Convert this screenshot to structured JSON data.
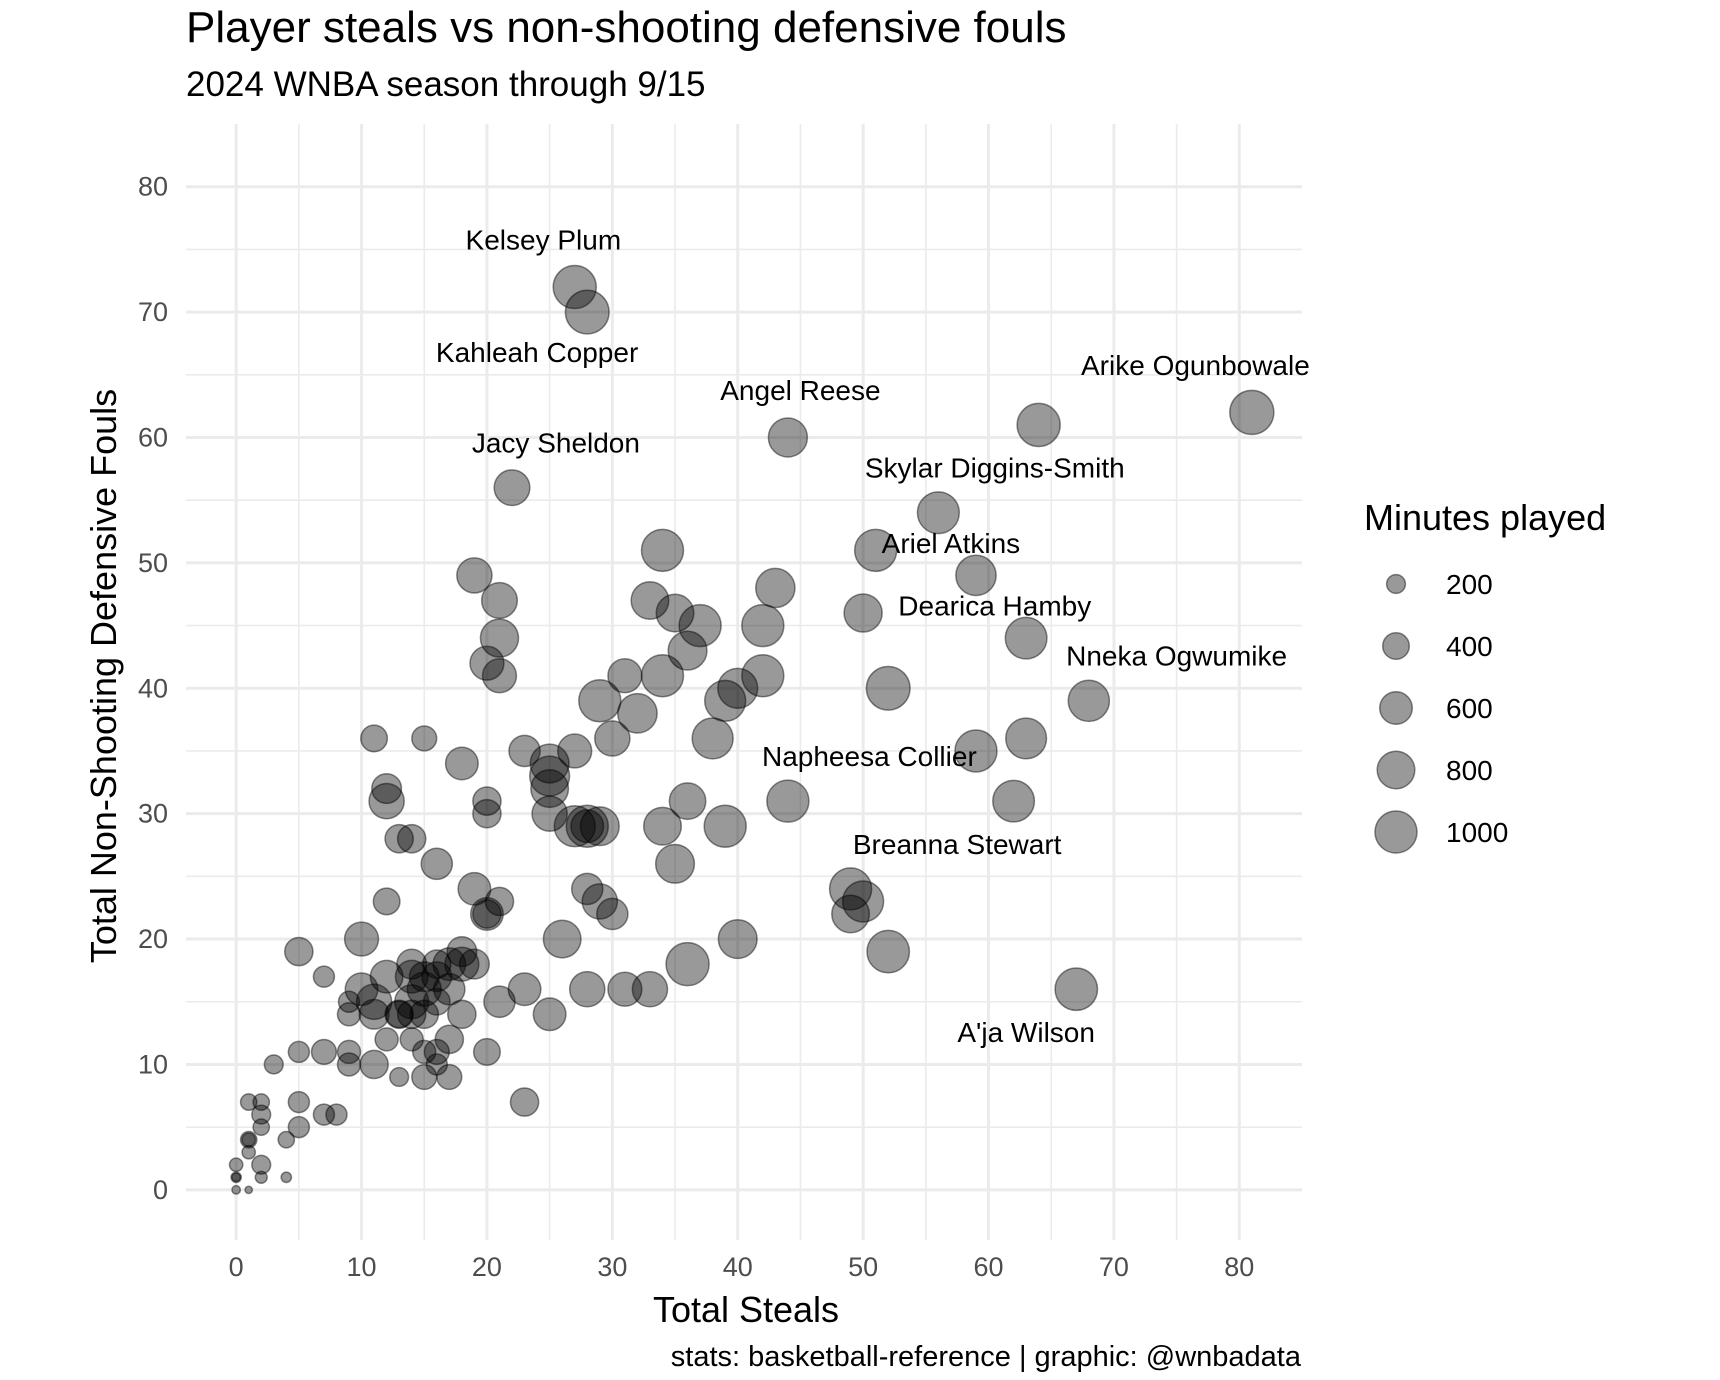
{
  "chart_data": {
    "type": "scatter",
    "title": "Player steals vs non-shooting defensive fouls",
    "subtitle": "2024 WNBA season through 9/15",
    "xlabel": "Total Steals",
    "ylabel": "Total Non-Shooting Defensive Fouls",
    "caption": "stats: basketball-reference | graphic: @wnbadata",
    "xlim": [
      -4,
      85
    ],
    "ylim": [
      -4,
      85
    ],
    "x_ticks": [
      0,
      10,
      20,
      30,
      40,
      50,
      60,
      70,
      80
    ],
    "y_ticks": [
      0,
      10,
      20,
      30,
      40,
      50,
      60,
      70,
      80
    ],
    "grid": true,
    "size_legend": {
      "title": "Minutes played",
      "position": "right",
      "entries": [
        {
          "label": "200",
          "value": 200
        },
        {
          "label": "400",
          "value": 400
        },
        {
          "label": "600",
          "value": 600
        },
        {
          "label": "800",
          "value": 800
        },
        {
          "label": "1000",
          "value": 1000
        }
      ]
    },
    "points": [
      {
        "x": 27,
        "y": 72,
        "minutes": 1050
      },
      {
        "x": 28,
        "y": 70,
        "minutes": 1080
      },
      {
        "x": 44,
        "y": 60,
        "minutes": 860
      },
      {
        "x": 22,
        "y": 56,
        "minutes": 720
      },
      {
        "x": 64,
        "y": 61,
        "minutes": 1050
      },
      {
        "x": 81,
        "y": 62,
        "minutes": 1100
      },
      {
        "x": 56,
        "y": 54,
        "minutes": 990
      },
      {
        "x": 51,
        "y": 51,
        "minutes": 1000
      },
      {
        "x": 59,
        "y": 49,
        "minutes": 920
      },
      {
        "x": 50,
        "y": 46,
        "minutes": 820
      },
      {
        "x": 63,
        "y": 44,
        "minutes": 980
      },
      {
        "x": 68,
        "y": 39,
        "minutes": 960
      },
      {
        "x": 52,
        "y": 40,
        "minutes": 1080
      },
      {
        "x": 44,
        "y": 31,
        "minutes": 1000
      },
      {
        "x": 59,
        "y": 35,
        "minutes": 1000
      },
      {
        "x": 63,
        "y": 36,
        "minutes": 940
      },
      {
        "x": 62,
        "y": 31,
        "minutes": 980
      },
      {
        "x": 49,
        "y": 24,
        "minutes": 1000
      },
      {
        "x": 50,
        "y": 23,
        "minutes": 950
      },
      {
        "x": 49,
        "y": 22,
        "minutes": 800
      },
      {
        "x": 52,
        "y": 19,
        "minutes": 1020
      },
      {
        "x": 67,
        "y": 16,
        "minutes": 1020
      },
      {
        "x": 34,
        "y": 51,
        "minutes": 1000
      },
      {
        "x": 43,
        "y": 48,
        "minutes": 870
      },
      {
        "x": 33,
        "y": 47,
        "minutes": 800
      },
      {
        "x": 35,
        "y": 46,
        "minutes": 800
      },
      {
        "x": 37,
        "y": 45,
        "minutes": 1000
      },
      {
        "x": 42,
        "y": 45,
        "minutes": 1000
      },
      {
        "x": 36,
        "y": 43,
        "minutes": 850
      },
      {
        "x": 19,
        "y": 49,
        "minutes": 700
      },
      {
        "x": 21,
        "y": 47,
        "minutes": 720
      },
      {
        "x": 21,
        "y": 44,
        "minutes": 820
      },
      {
        "x": 20,
        "y": 42,
        "minutes": 650
      },
      {
        "x": 21,
        "y": 41,
        "minutes": 650
      },
      {
        "x": 31,
        "y": 41,
        "minutes": 650
      },
      {
        "x": 34,
        "y": 41,
        "minutes": 1000
      },
      {
        "x": 29,
        "y": 39,
        "minutes": 1000
      },
      {
        "x": 32,
        "y": 38,
        "minutes": 880
      },
      {
        "x": 39,
        "y": 39,
        "minutes": 950
      },
      {
        "x": 40,
        "y": 40,
        "minutes": 900
      },
      {
        "x": 42,
        "y": 41,
        "minutes": 1000
      },
      {
        "x": 38,
        "y": 36,
        "minutes": 950
      },
      {
        "x": 30,
        "y": 36,
        "minutes": 700
      },
      {
        "x": 11,
        "y": 36,
        "minutes": 400
      },
      {
        "x": 15,
        "y": 36,
        "minutes": 350
      },
      {
        "x": 18,
        "y": 34,
        "minutes": 600
      },
      {
        "x": 23,
        "y": 35,
        "minutes": 550
      },
      {
        "x": 25,
        "y": 34,
        "minutes": 850
      },
      {
        "x": 27,
        "y": 35,
        "minutes": 650
      },
      {
        "x": 25,
        "y": 33,
        "minutes": 900
      },
      {
        "x": 25,
        "y": 32,
        "minutes": 800
      },
      {
        "x": 12,
        "y": 32,
        "minutes": 500
      },
      {
        "x": 12,
        "y": 31,
        "minutes": 700
      },
      {
        "x": 20,
        "y": 31,
        "minutes": 450
      },
      {
        "x": 20,
        "y": 30,
        "minutes": 450
      },
      {
        "x": 25,
        "y": 30,
        "minutes": 700
      },
      {
        "x": 27,
        "y": 29,
        "minutes": 950
      },
      {
        "x": 28,
        "y": 29,
        "minutes": 1000
      },
      {
        "x": 29,
        "y": 29,
        "minutes": 850
      },
      {
        "x": 28,
        "y": 29,
        "minutes": 600
      },
      {
        "x": 36,
        "y": 31,
        "minutes": 750
      },
      {
        "x": 34,
        "y": 29,
        "minutes": 800
      },
      {
        "x": 39,
        "y": 29,
        "minutes": 1000
      },
      {
        "x": 13,
        "y": 28,
        "minutes": 450
      },
      {
        "x": 14,
        "y": 28,
        "minutes": 450
      },
      {
        "x": 16,
        "y": 26,
        "minutes": 550
      },
      {
        "x": 35,
        "y": 26,
        "minutes": 850
      },
      {
        "x": 19,
        "y": 24,
        "minutes": 600
      },
      {
        "x": 28,
        "y": 24,
        "minutes": 550
      },
      {
        "x": 29,
        "y": 23,
        "minutes": 700
      },
      {
        "x": 30,
        "y": 22,
        "minutes": 550
      },
      {
        "x": 12,
        "y": 23,
        "minutes": 400
      },
      {
        "x": 20,
        "y": 22,
        "minutes": 600
      },
      {
        "x": 21,
        "y": 23,
        "minutes": 450
      },
      {
        "x": 20,
        "y": 22,
        "minutes": 450
      },
      {
        "x": 10,
        "y": 20,
        "minutes": 650
      },
      {
        "x": 26,
        "y": 20,
        "minutes": 800
      },
      {
        "x": 40,
        "y": 20,
        "minutes": 850
      },
      {
        "x": 36,
        "y": 18,
        "minutes": 1050
      },
      {
        "x": 5,
        "y": 19,
        "minutes": 450
      },
      {
        "x": 7,
        "y": 17,
        "minutes": 250
      },
      {
        "x": 9,
        "y": 15,
        "minutes": 250
      },
      {
        "x": 9,
        "y": 14,
        "minutes": 300
      },
      {
        "x": 10,
        "y": 16,
        "minutes": 600
      },
      {
        "x": 11,
        "y": 15,
        "minutes": 700
      },
      {
        "x": 12,
        "y": 17,
        "minutes": 600
      },
      {
        "x": 11,
        "y": 14,
        "minutes": 500
      },
      {
        "x": 13,
        "y": 14,
        "minutes": 450
      },
      {
        "x": 14,
        "y": 18,
        "minutes": 500
      },
      {
        "x": 14,
        "y": 17,
        "minutes": 600
      },
      {
        "x": 14,
        "y": 15,
        "minutes": 650
      },
      {
        "x": 15,
        "y": 16,
        "minutes": 650
      },
      {
        "x": 15,
        "y": 17,
        "minutes": 500
      },
      {
        "x": 16,
        "y": 17,
        "minutes": 500
      },
      {
        "x": 16,
        "y": 18,
        "minutes": 450
      },
      {
        "x": 17,
        "y": 18,
        "minutes": 600
      },
      {
        "x": 17,
        "y": 16,
        "minutes": 550
      },
      {
        "x": 18,
        "y": 19,
        "minutes": 500
      },
      {
        "x": 18,
        "y": 18,
        "minutes": 650
      },
      {
        "x": 19,
        "y": 18,
        "minutes": 500
      },
      {
        "x": 16,
        "y": 15,
        "minutes": 400
      },
      {
        "x": 14,
        "y": 14,
        "minutes": 450
      },
      {
        "x": 13,
        "y": 14,
        "minutes": 400
      },
      {
        "x": 18,
        "y": 14,
        "minutes": 450
      },
      {
        "x": 15,
        "y": 14,
        "minutes": 450
      },
      {
        "x": 12,
        "y": 12,
        "minutes": 300
      },
      {
        "x": 14,
        "y": 12,
        "minutes": 300
      },
      {
        "x": 15,
        "y": 11,
        "minutes": 300
      },
      {
        "x": 16,
        "y": 11,
        "minutes": 350
      },
      {
        "x": 17,
        "y": 12,
        "minutes": 450
      },
      {
        "x": 21,
        "y": 15,
        "minutes": 550
      },
      {
        "x": 23,
        "y": 16,
        "minutes": 600
      },
      {
        "x": 25,
        "y": 14,
        "minutes": 600
      },
      {
        "x": 28,
        "y": 16,
        "minutes": 700
      },
      {
        "x": 31,
        "y": 16,
        "minutes": 650
      },
      {
        "x": 33,
        "y": 16,
        "minutes": 700
      },
      {
        "x": 20,
        "y": 11,
        "minutes": 400
      },
      {
        "x": 5,
        "y": 11,
        "minutes": 250
      },
      {
        "x": 7,
        "y": 11,
        "minutes": 350
      },
      {
        "x": 9,
        "y": 11,
        "minutes": 300
      },
      {
        "x": 9,
        "y": 10,
        "minutes": 300
      },
      {
        "x": 11,
        "y": 10,
        "minutes": 450
      },
      {
        "x": 13,
        "y": 9,
        "minutes": 200
      },
      {
        "x": 15,
        "y": 9,
        "minutes": 350
      },
      {
        "x": 16,
        "y": 10,
        "minutes": 250
      },
      {
        "x": 17,
        "y": 9,
        "minutes": 350
      },
      {
        "x": 3,
        "y": 10,
        "minutes": 200
      },
      {
        "x": 23,
        "y": 7,
        "minutes": 450
      },
      {
        "x": 1,
        "y": 7,
        "minutes": 150
      },
      {
        "x": 2,
        "y": 7,
        "minutes": 150
      },
      {
        "x": 5,
        "y": 7,
        "minutes": 250
      },
      {
        "x": 2,
        "y": 6,
        "minutes": 200
      },
      {
        "x": 7,
        "y": 6,
        "minutes": 250
      },
      {
        "x": 8,
        "y": 6,
        "minutes": 250
      },
      {
        "x": 2,
        "y": 5,
        "minutes": 150
      },
      {
        "x": 5,
        "y": 5,
        "minutes": 250
      },
      {
        "x": 1,
        "y": 4,
        "minutes": 150
      },
      {
        "x": 1,
        "y": 4,
        "minutes": 100
      },
      {
        "x": 4,
        "y": 4,
        "minutes": 150
      },
      {
        "x": 1,
        "y": 3,
        "minutes": 100
      },
      {
        "x": 2,
        "y": 2,
        "minutes": 200
      },
      {
        "x": 0,
        "y": 2,
        "minutes": 100
      },
      {
        "x": 2,
        "y": 1,
        "minutes": 80
      },
      {
        "x": 4,
        "y": 1,
        "minutes": 60
      },
      {
        "x": 0,
        "y": 1,
        "minutes": 60
      },
      {
        "x": 0,
        "y": 1,
        "minutes": 40
      },
      {
        "x": 0,
        "y": 0,
        "minutes": 40
      },
      {
        "x": 1,
        "y": 0,
        "minutes": 30
      }
    ],
    "labels": [
      {
        "text": "Kelsey Plum",
        "x": 24.5,
        "y": 75
      },
      {
        "text": "Kahleah Copper",
        "x": 24,
        "y": 66
      },
      {
        "text": "Angel Reese",
        "x": 45,
        "y": 63
      },
      {
        "text": "Arike Ogunbowale",
        "x": 76.5,
        "y": 65
      },
      {
        "text": "Jacy Sheldon",
        "x": 25.5,
        "y": 58.8
      },
      {
        "text": "Skylar Diggins-Smith",
        "x": 60.5,
        "y": 56.8
      },
      {
        "text": "Ariel Atkins",
        "x": 57,
        "y": 50.8
      },
      {
        "text": "Dearica Hamby",
        "x": 60.5,
        "y": 45.8
      },
      {
        "text": "Nneka Ogwumike",
        "x": 75,
        "y": 41.8
      },
      {
        "text": "Napheesa Collier",
        "x": 50.5,
        "y": 33.8
      },
      {
        "text": "Breanna Stewart",
        "x": 57.5,
        "y": 26.8
      },
      {
        "text": "A'ja Wilson",
        "x": 63,
        "y": 11.8
      }
    ]
  }
}
